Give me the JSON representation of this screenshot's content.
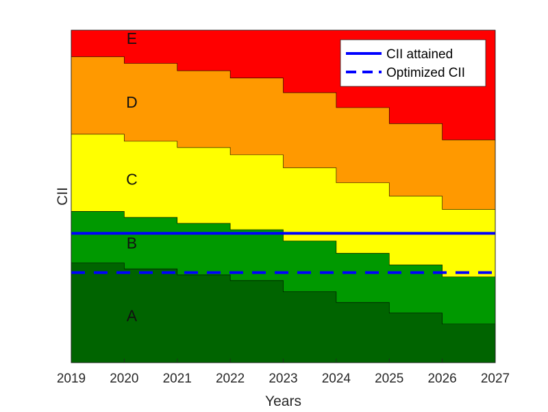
{
  "chart_data": {
    "type": "area",
    "title": "",
    "xlabel": "Years",
    "ylabel": "CII",
    "xlim": [
      2019,
      2027
    ],
    "ylim": [
      0,
      100
    ],
    "x_ticks": [
      "2019",
      "2020",
      "2021",
      "2022",
      "2023",
      "2024",
      "2025",
      "2026",
      "2027"
    ],
    "y_ticks_shown": false,
    "grid": false,
    "bands": [
      {
        "name": "A",
        "color": "#006400",
        "upper": [
          30,
          28.2,
          26.4,
          24.7,
          21.3,
          18.1,
          14.9,
          11.6
        ]
      },
      {
        "name": "B",
        "color": "#009900",
        "upper": [
          45.5,
          43.7,
          41.9,
          40.0,
          36.6,
          32.9,
          29.4,
          25.8
        ]
      },
      {
        "name": "C",
        "color": "#FFFF00",
        "upper": [
          68.7,
          66.6,
          64.7,
          62.5,
          58.6,
          54.1,
          50.1,
          46.1
        ]
      },
      {
        "name": "D",
        "color": "#FF9900",
        "upper": [
          92,
          90.0,
          87.8,
          85.6,
          81.2,
          76.7,
          71.9,
          67.0
        ]
      },
      {
        "name": "E",
        "color": "#FF0000",
        "upper": [
          100,
          100,
          100,
          100,
          100,
          100,
          100,
          100
        ]
      }
    ],
    "series": [
      {
        "name": "CII attained",
        "style": "solid",
        "color": "#0000FF",
        "x": [
          2019,
          2027
        ],
        "y": [
          38.9,
          38.9
        ]
      },
      {
        "name": "Optimized CII",
        "style": "dashed",
        "color": "#0000FF",
        "x": [
          2019,
          2027
        ],
        "y": [
          27.1,
          27.1
        ]
      }
    ],
    "legend_position": "top-right"
  }
}
